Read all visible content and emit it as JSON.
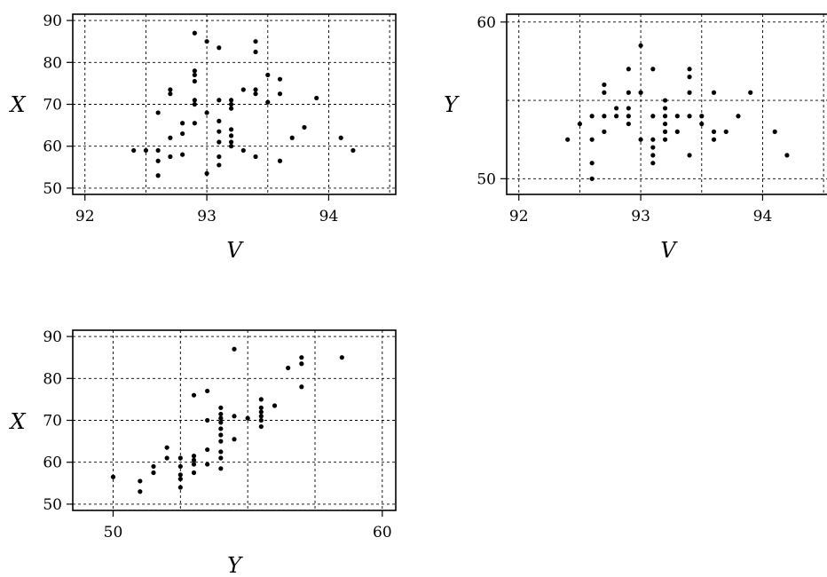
{
  "chart_data": [
    {
      "type": "scatter",
      "xlabel": "V",
      "ylabel": "X",
      "xlim": [
        91.9,
        94.55
      ],
      "ylim": [
        48.5,
        91.5
      ],
      "xticks": [
        92,
        93,
        94
      ],
      "yticks": [
        50,
        60,
        70,
        80,
        90
      ],
      "xgrid": [
        92,
        92.5,
        93,
        93.5,
        94,
        94.5
      ],
      "ygrid": [
        50,
        60,
        70,
        80,
        90
      ],
      "grid": true,
      "points": [
        [
          92.4,
          59
        ],
        [
          92.5,
          59
        ],
        [
          92.6,
          53
        ],
        [
          92.6,
          56.5
        ],
        [
          92.6,
          59
        ],
        [
          92.6,
          68
        ],
        [
          92.7,
          57.5
        ],
        [
          92.7,
          62
        ],
        [
          92.7,
          72.5
        ],
        [
          92.7,
          73.5
        ],
        [
          92.8,
          58
        ],
        [
          92.8,
          63
        ],
        [
          92.8,
          65.5
        ],
        [
          92.9,
          65.5
        ],
        [
          92.9,
          70
        ],
        [
          92.9,
          71
        ],
        [
          92.9,
          75.5
        ],
        [
          92.9,
          77
        ],
        [
          92.9,
          78
        ],
        [
          92.9,
          87
        ],
        [
          93.0,
          53.5
        ],
        [
          93.0,
          68
        ],
        [
          93.0,
          85
        ],
        [
          93.1,
          55.5
        ],
        [
          93.1,
          57.5
        ],
        [
          93.1,
          61
        ],
        [
          93.1,
          63.5
        ],
        [
          93.1,
          66
        ],
        [
          93.1,
          71
        ],
        [
          93.1,
          83.5
        ],
        [
          93.2,
          60
        ],
        [
          93.2,
          61
        ],
        [
          93.2,
          62.5
        ],
        [
          93.2,
          64
        ],
        [
          93.2,
          69
        ],
        [
          93.2,
          70
        ],
        [
          93.2,
          71
        ],
        [
          93.3,
          59
        ],
        [
          93.3,
          73.5
        ],
        [
          93.4,
          57.5
        ],
        [
          93.4,
          72.5
        ],
        [
          93.4,
          73.5
        ],
        [
          93.4,
          82.5
        ],
        [
          93.4,
          85
        ],
        [
          93.5,
          70.5
        ],
        [
          93.5,
          77
        ],
        [
          93.6,
          56.5
        ],
        [
          93.6,
          72.5
        ],
        [
          93.6,
          76
        ],
        [
          93.7,
          62
        ],
        [
          93.8,
          64.5
        ],
        [
          93.9,
          71.5
        ],
        [
          94.1,
          62
        ],
        [
          94.2,
          59
        ]
      ]
    },
    {
      "type": "scatter",
      "xlabel": "V",
      "ylabel": "Y",
      "xlim": [
        91.9,
        94.55
      ],
      "ylim": [
        49,
        60.5
      ],
      "xticks": [
        92,
        93,
        94
      ],
      "yticks": [
        50,
        60
      ],
      "xgrid": [
        92,
        92.5,
        93,
        93.5,
        94,
        94.5
      ],
      "ygrid": [
        50,
        55,
        60
      ],
      "grid": true,
      "points": [
        [
          92.4,
          52.5
        ],
        [
          92.5,
          53.5
        ],
        [
          92.6,
          50
        ],
        [
          92.6,
          51
        ],
        [
          92.6,
          52.5
        ],
        [
          92.6,
          54
        ],
        [
          92.7,
          53
        ],
        [
          92.7,
          54
        ],
        [
          92.7,
          55.5
        ],
        [
          92.7,
          56
        ],
        [
          92.8,
          54
        ],
        [
          92.8,
          54.5
        ],
        [
          92.9,
          53.5
        ],
        [
          92.9,
          54
        ],
        [
          92.9,
          54.5
        ],
        [
          92.9,
          55.5
        ],
        [
          92.9,
          57
        ],
        [
          93.0,
          52.5
        ],
        [
          93.0,
          55.5
        ],
        [
          93.0,
          58.5
        ],
        [
          93.1,
          51
        ],
        [
          93.1,
          51.5
        ],
        [
          93.1,
          52
        ],
        [
          93.1,
          52.5
        ],
        [
          93.1,
          54
        ],
        [
          93.1,
          57
        ],
        [
          93.2,
          52.5
        ],
        [
          93.2,
          53
        ],
        [
          93.2,
          53.5
        ],
        [
          93.2,
          54
        ],
        [
          93.2,
          54.5
        ],
        [
          93.2,
          55
        ],
        [
          93.3,
          53
        ],
        [
          93.3,
          54
        ],
        [
          93.4,
          51.5
        ],
        [
          93.4,
          54
        ],
        [
          93.4,
          55.5
        ],
        [
          93.4,
          56.5
        ],
        [
          93.4,
          57
        ],
        [
          93.5,
          53.5
        ],
        [
          93.5,
          54
        ],
        [
          93.6,
          52.5
        ],
        [
          93.6,
          53
        ],
        [
          93.6,
          55.5
        ],
        [
          93.7,
          53
        ],
        [
          93.8,
          54
        ],
        [
          93.9,
          55.5
        ],
        [
          94.1,
          53
        ],
        [
          94.2,
          51.5
        ]
      ]
    },
    {
      "type": "scatter",
      "xlabel": "Y",
      "ylabel": "X",
      "xlim": [
        48.5,
        60.5
      ],
      "ylim": [
        48.5,
        91.5
      ],
      "xticks": [
        50,
        60
      ],
      "yticks": [
        50,
        60,
        70,
        80,
        90
      ],
      "xgrid": [
        50,
        52.5,
        55,
        57.5,
        60
      ],
      "ygrid": [
        50,
        60,
        70,
        80,
        90
      ],
      "grid": true,
      "points": [
        [
          50,
          56.5
        ],
        [
          51,
          53
        ],
        [
          51,
          55.5
        ],
        [
          51.5,
          57.5
        ],
        [
          51.5,
          59
        ],
        [
          52,
          61
        ],
        [
          52,
          63.5
        ],
        [
          52.5,
          54
        ],
        [
          52.5,
          56
        ],
        [
          52.5,
          57
        ],
        [
          52.5,
          59
        ],
        [
          52.5,
          61
        ],
        [
          53,
          57.5
        ],
        [
          53,
          59.5
        ],
        [
          53,
          60.5
        ],
        [
          53,
          61.5
        ],
        [
          53,
          76
        ],
        [
          53.5,
          59.5
        ],
        [
          53.5,
          63
        ],
        [
          53.5,
          70
        ],
        [
          53.5,
          77
        ],
        [
          54,
          58.5
        ],
        [
          54,
          61
        ],
        [
          54,
          62.5
        ],
        [
          54,
          65
        ],
        [
          54,
          66.5
        ],
        [
          54,
          68
        ],
        [
          54,
          69.5
        ],
        [
          54,
          70.5
        ],
        [
          54,
          71.5
        ],
        [
          54,
          73
        ],
        [
          54.5,
          65.5
        ],
        [
          54.5,
          71
        ],
        [
          54.5,
          87
        ],
        [
          55,
          70.5
        ],
        [
          55.5,
          68.5
        ],
        [
          55.5,
          70
        ],
        [
          55.5,
          71
        ],
        [
          55.5,
          72
        ],
        [
          55.5,
          73
        ],
        [
          55.5,
          75
        ],
        [
          56,
          73.5
        ],
        [
          56.5,
          82.5
        ],
        [
          57,
          78
        ],
        [
          57,
          83.5
        ],
        [
          57,
          85
        ],
        [
          58.5,
          85
        ]
      ]
    }
  ]
}
